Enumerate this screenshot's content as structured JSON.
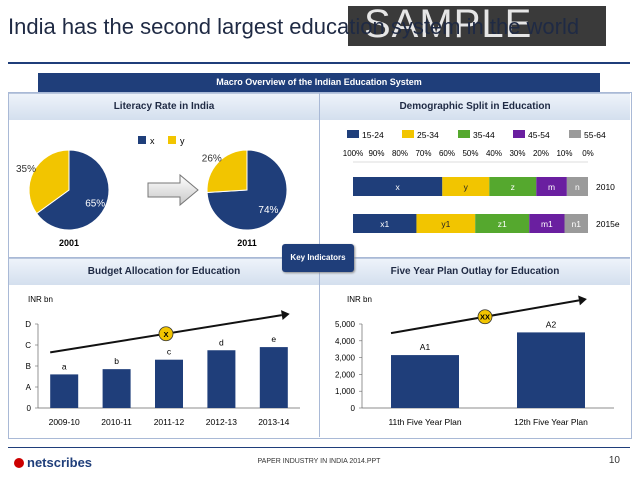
{
  "title": "India has the second largest education system in the world",
  "watermark": "SAMPLE",
  "banner": "Macro Overview of the Indian Education System",
  "key_indicators": "Key Indicators",
  "footer": {
    "logo": "netscribes",
    "text": "PAPER INDUSTRY IN INDIA 2014.PPT",
    "page": "10"
  },
  "panels": {
    "literacy": "Literacy Rate in India",
    "demographic": "Demographic Split in Education",
    "budget": "Budget Allocation for Education",
    "plan": "Five Year Plan Outlay for Education"
  },
  "colors": {
    "navy": "#1f3e7a",
    "yellow": "#f2c500",
    "green": "#55a82e",
    "purple": "#6a1fa0",
    "grey": "#9a9a9a"
  },
  "chart_data": [
    {
      "type": "pie",
      "title": "Literacy Rate in India",
      "legend": [
        "x",
        "y"
      ],
      "pies": [
        {
          "label": "2001",
          "slices": [
            {
              "name": "x",
              "value": 65
            },
            {
              "name": "y",
              "value": 35
            }
          ]
        },
        {
          "label": "2011",
          "slices": [
            {
              "name": "x",
              "value": 74
            },
            {
              "name": "y",
              "value": 26
            }
          ]
        }
      ]
    },
    {
      "type": "bar",
      "orientation": "horizontal-stacked",
      "title": "Demographic Split in Education",
      "legend": [
        "15-24",
        "25-34",
        "35-44",
        "45-54",
        "55-64"
      ],
      "axis_ticks": [
        "100%",
        "90%",
        "80%",
        "70%",
        "60%",
        "50%",
        "40%",
        "30%",
        "20%",
        "10%",
        "0%"
      ],
      "rows": [
        {
          "year": "2010",
          "segments": [
            {
              "label": "x",
              "value": 38
            },
            {
              "label": "y",
              "value": 20
            },
            {
              "label": "z",
              "value": 20
            },
            {
              "label": "m",
              "value": 13
            },
            {
              "label": "n",
              "value": 9
            }
          ]
        },
        {
          "year": "2015e",
          "segments": [
            {
              "label": "x1",
              "value": 27
            },
            {
              "label": "y1",
              "value": 25
            },
            {
              "label": "z1",
              "value": 23
            },
            {
              "label": "m1",
              "value": 15
            },
            {
              "label": "n1",
              "value": 10
            }
          ]
        }
      ]
    },
    {
      "type": "bar",
      "title": "Budget Allocation for Education",
      "ylabel": "INR bn",
      "categories": [
        "2009-10",
        "2010-11",
        "2011-12",
        "2012-13",
        "2013-14"
      ],
      "values": [
        1.6,
        1.85,
        2.3,
        2.75,
        2.9
      ],
      "bar_labels": [
        "a",
        "b",
        "c",
        "d",
        "e"
      ],
      "y_ticks": [
        "0",
        "A",
        "B",
        "C",
        "D"
      ],
      "ylim": [
        0,
        4
      ],
      "trend_label": "X"
    },
    {
      "type": "bar",
      "title": "Five Year Plan Outlay for Education",
      "ylabel": "INR bn",
      "categories": [
        "11th Five Year Plan",
        "12th Five Year Plan"
      ],
      "values": [
        3150,
        4500
      ],
      "bar_labels": [
        "A1",
        "A2"
      ],
      "y_ticks": [
        "0",
        "1,000",
        "2,000",
        "3,000",
        "4,000",
        "5,000"
      ],
      "ylim": [
        0,
        5000
      ],
      "trend_label": "XX"
    }
  ]
}
